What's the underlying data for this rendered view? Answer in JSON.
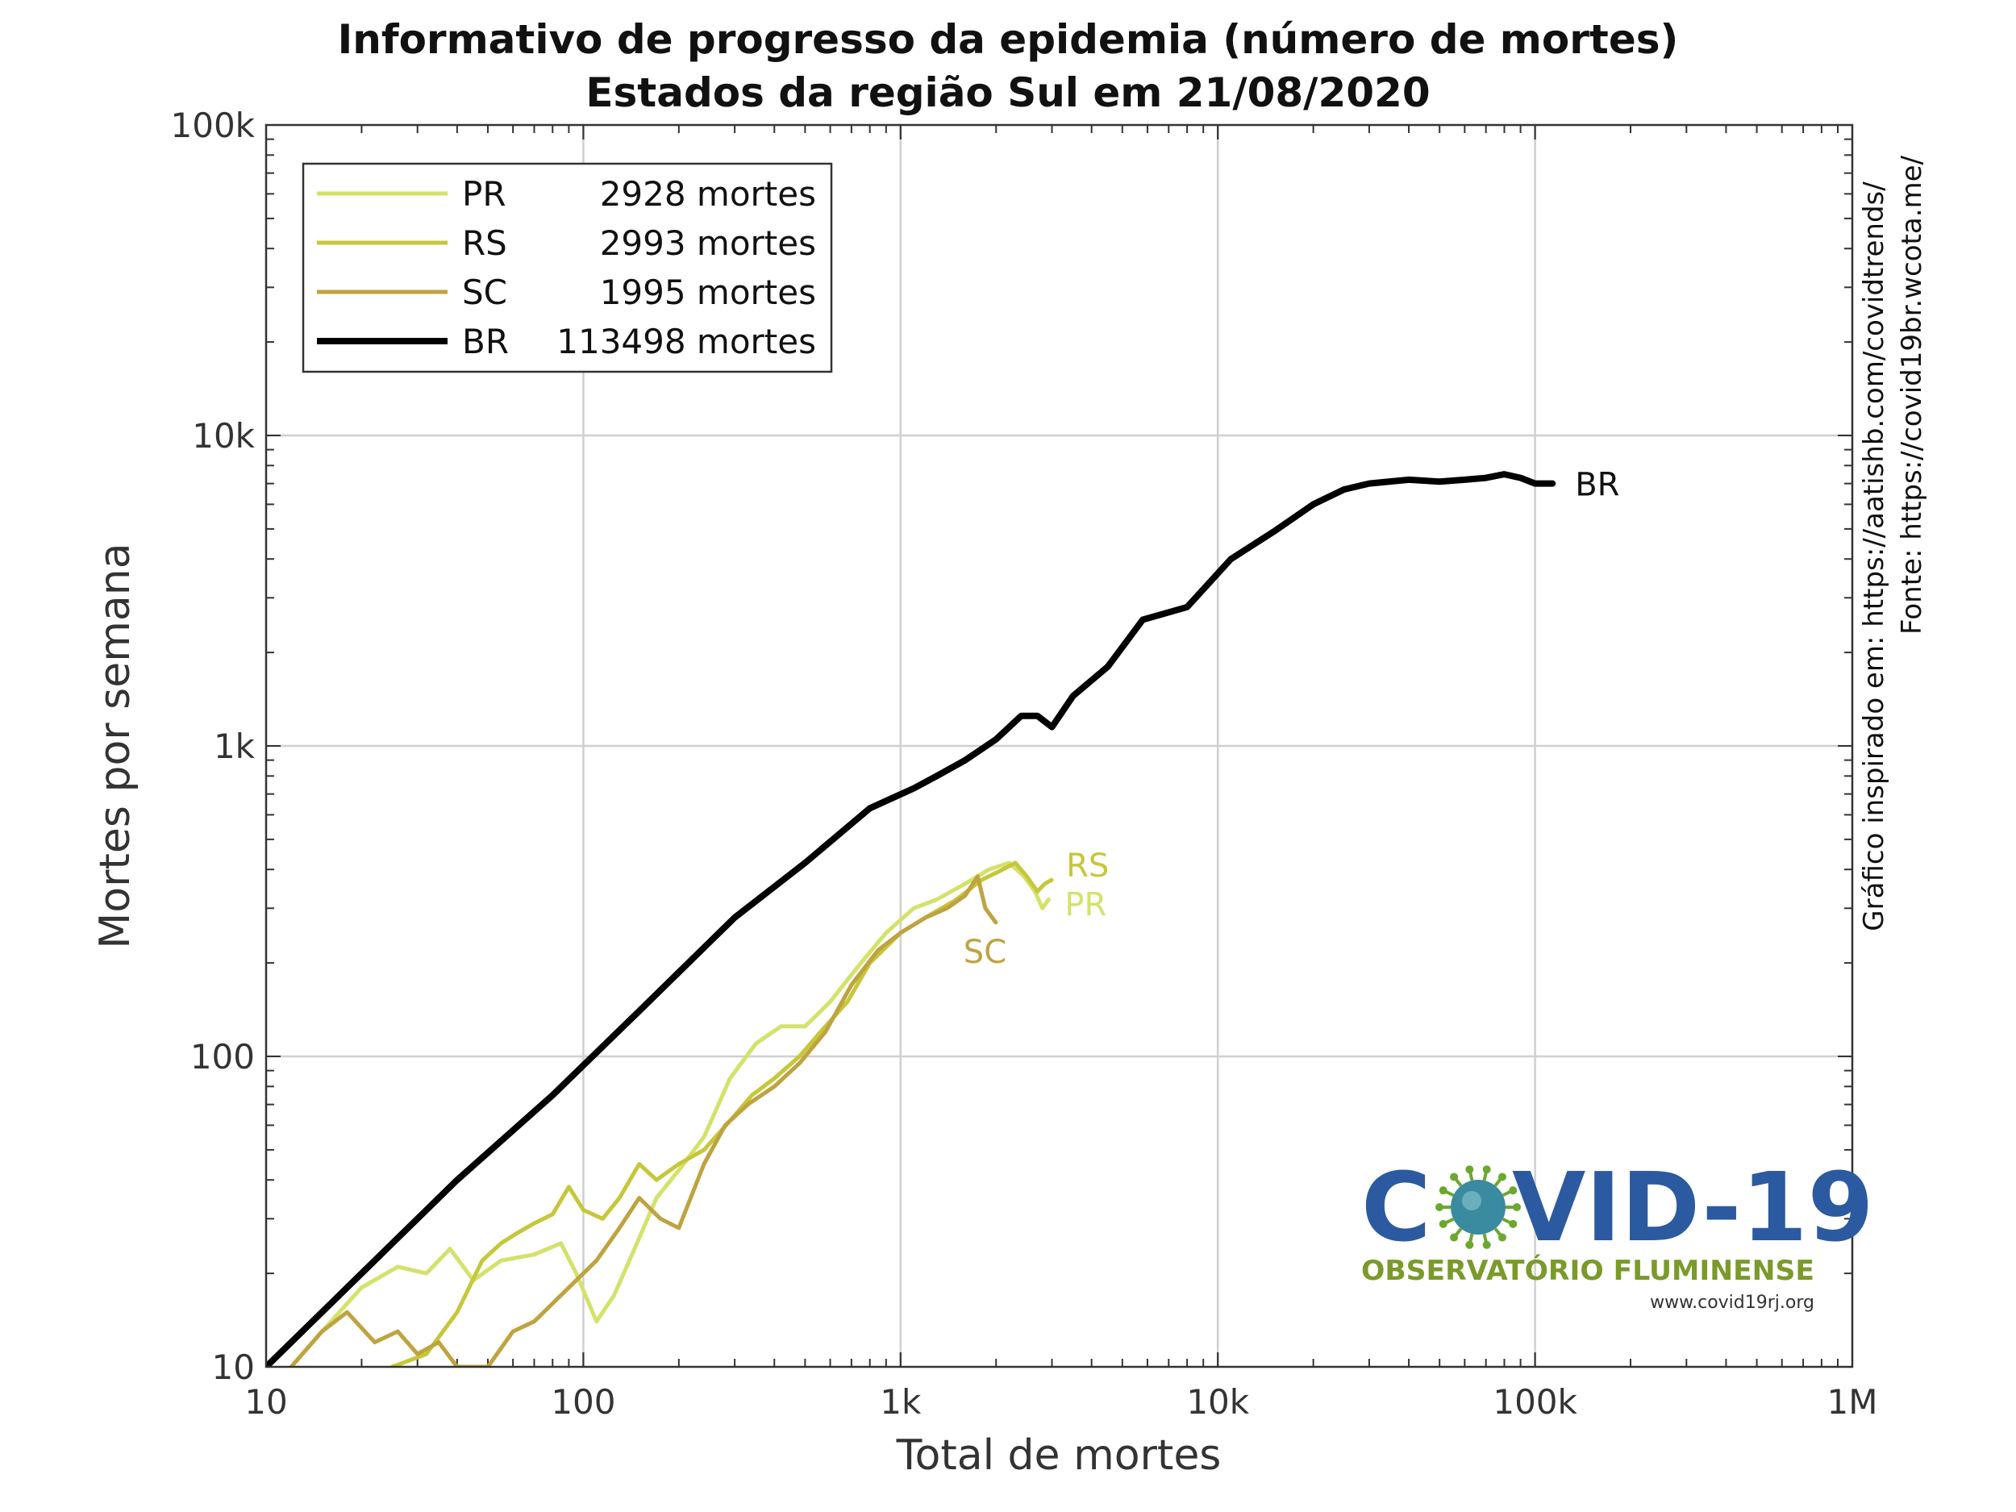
{
  "chart_data": {
    "type": "line",
    "title": "Informativo de progresso da epidemia (número de mortes)",
    "subtitle": "Estados da região Sul em 21/08/2020",
    "xlabel": "Total de mortes",
    "ylabel": "Mortes por semana",
    "xscale": "log",
    "yscale": "log",
    "xlim": [
      10,
      1000000
    ],
    "ylim": [
      10,
      100000
    ],
    "xticks": [
      10,
      100,
      1000,
      10000,
      100000,
      1000000
    ],
    "xtick_labels": [
      "10",
      "100",
      "1k",
      "10k",
      "100k",
      "1M"
    ],
    "yticks": [
      10,
      100,
      1000,
      10000,
      100000
    ],
    "ytick_labels": [
      "10",
      "100",
      "1k",
      "10k",
      "100k"
    ],
    "grid": true,
    "legend_position": "top-left",
    "series": [
      {
        "name": "PR",
        "legend_text": "2928 mortes",
        "end_label": "PR",
        "color": "#d4e26b",
        "x": [
          12,
          15,
          20,
          26,
          32,
          38,
          45,
          55,
          70,
          85,
          95,
          110,
          125,
          145,
          170,
          200,
          240,
          290,
          350,
          420,
          500,
          600,
          750,
          900,
          1100,
          1300,
          1600,
          1900,
          2200,
          2450,
          2650,
          2800,
          2928
        ],
        "y": [
          10,
          13,
          18,
          21,
          20,
          24,
          19,
          22,
          23,
          25,
          20,
          14,
          17,
          24,
          35,
          43,
          55,
          85,
          110,
          125,
          125,
          150,
          200,
          250,
          300,
          320,
          360,
          400,
          420,
          380,
          340,
          300,
          320
        ]
      },
      {
        "name": "RS",
        "legend_text": "2993 mortes",
        "end_label": "RS",
        "color": "#c6c73a",
        "x": [
          25,
          32,
          40,
          48,
          55,
          62,
          70,
          80,
          90,
          100,
          115,
          130,
          150,
          170,
          200,
          240,
          290,
          340,
          400,
          480,
          560,
          680,
          800,
          1000,
          1200,
          1500,
          1800,
          2100,
          2300,
          2500,
          2700,
          2850,
          2993
        ],
        "y": [
          10,
          11,
          15,
          22,
          25,
          27,
          29,
          31,
          38,
          32,
          30,
          35,
          45,
          40,
          45,
          50,
          62,
          75,
          85,
          100,
          120,
          150,
          200,
          250,
          280,
          320,
          370,
          400,
          420,
          380,
          340,
          360,
          370
        ]
      },
      {
        "name": "SC",
        "legend_text": "1995 mortes",
        "end_label": "SC",
        "color": "#bfa33f",
        "x": [
          12,
          15,
          18,
          22,
          26,
          30,
          35,
          40,
          50,
          60,
          70,
          80,
          90,
          110,
          130,
          150,
          175,
          200,
          240,
          280,
          330,
          400,
          480,
          580,
          700,
          850,
          1000,
          1200,
          1400,
          1600,
          1750,
          1850,
          1995
        ],
        "y": [
          10,
          13,
          15,
          12,
          13,
          11,
          12,
          10,
          10,
          13,
          14,
          16,
          18,
          22,
          28,
          35,
          30,
          28,
          45,
          60,
          70,
          80,
          95,
          120,
          170,
          220,
          250,
          280,
          300,
          330,
          380,
          300,
          270
        ]
      },
      {
        "name": "BR",
        "legend_text": "113498 mortes",
        "end_label": "BR",
        "color": "#000000",
        "x": [
          10,
          20,
          40,
          80,
          150,
          300,
          500,
          800,
          1100,
          1300,
          1600,
          2000,
          2400,
          2700,
          3000,
          3500,
          4500,
          5800,
          8000,
          11000,
          15000,
          20000,
          25000,
          30000,
          40000,
          50000,
          60000,
          70000,
          80000,
          90000,
          100000,
          113498
        ],
        "y": [
          10,
          20,
          40,
          75,
          140,
          280,
          420,
          630,
          730,
          800,
          900,
          1050,
          1250,
          1250,
          1150,
          1450,
          1800,
          2550,
          2800,
          4000,
          4900,
          6000,
          6700,
          7000,
          7200,
          7100,
          7200,
          7300,
          7500,
          7300,
          7000,
          7000
        ]
      }
    ]
  },
  "side_text": {
    "line1": "Gráfico inspirado em: https://aatishb.com/covidtrends/",
    "line2": "Fonte: https://covid19br.wcota.me/"
  },
  "logo": {
    "brand_left": "C",
    "brand_right": "VID-19",
    "subtitle": "OBSERVATÓRIO FLUMINENSE",
    "url": "www.covid19rj.org",
    "brand_color": "#2b5aa0",
    "subtitle_color": "#7a9a2a",
    "virus_color": "#3a8aa0",
    "spike_color": "#6aa82e"
  }
}
